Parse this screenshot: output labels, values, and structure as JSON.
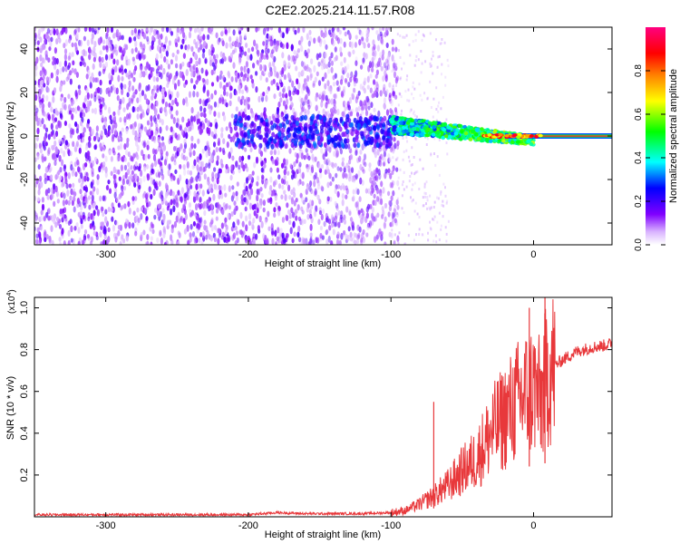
{
  "figure": {
    "title": "C2E2.2025.214.11.57.R08"
  },
  "chart_data": [
    {
      "type": "heatmap",
      "name": "spectrogram",
      "xlabel": "Height of straight line (km)",
      "ylabel": "Frequency (Hz)",
      "xlim": [
        -350,
        55
      ],
      "ylim": [
        -50,
        50
      ],
      "x_ticks": [
        "-300",
        "-200",
        "-100",
        "0"
      ],
      "y_ticks": [
        "-40",
        "-20",
        "0",
        "20",
        "40"
      ],
      "colorbar": {
        "label": "Normalized spectral amplitude",
        "range": [
          0,
          1
        ],
        "ticks": [
          "0.0",
          "0.2",
          "0.4",
          "0.6",
          "0.8"
        ],
        "colormap": [
          "#ffffff",
          "#8000ff",
          "#0000ff",
          "#00ffff",
          "#00ff00",
          "#ffff00",
          "#ff8000",
          "#ff0000",
          "#ff0080"
        ]
      },
      "regions": [
        {
          "x_range": [
            -350,
            -100
          ],
          "freq_range": [
            -50,
            50
          ],
          "amplitude": 0.12,
          "note_color": "#7a1fff"
        },
        {
          "x_range": [
            -100,
            0
          ],
          "freq_center": [
            5,
            -2
          ],
          "freq_halfwidth": 4,
          "amplitude": 0.45
        },
        {
          "x_range": [
            0,
            55
          ],
          "freq_center": 0,
          "freq_halfwidth": 1,
          "amplitude": 0.95
        }
      ]
    },
    {
      "type": "line",
      "name": "snr",
      "xlabel": "Height of straight line (km)",
      "ylabel": "SNR (10 * v/v)",
      "y_scale_label": "(x10",
      "y_scale_exp": "4",
      "y_scale_close": ")",
      "xlim": [
        -350,
        55
      ],
      "ylim": [
        0,
        1.05
      ],
      "x_ticks": [
        "-300",
        "-200",
        "-100",
        "0"
      ],
      "y_ticks": [
        "0.2",
        "0.4",
        "0.6",
        "0.8",
        "1.0"
      ],
      "color": "#e8383b",
      "series": [
        {
          "x": [
            -350,
            -300,
            -250,
            -200,
            -180,
            -160,
            -140,
            -120,
            -100,
            -90,
            -80,
            -70,
            -60,
            -50,
            -40,
            -30,
            -20,
            -10,
            0,
            5,
            10,
            20,
            30,
            40,
            50,
            55
          ],
          "y": [
            0.01,
            0.01,
            0.01,
            0.01,
            0.02,
            0.015,
            0.015,
            0.015,
            0.02,
            0.03,
            0.06,
            0.1,
            0.15,
            0.22,
            0.28,
            0.4,
            0.48,
            0.56,
            0.62,
            0.55,
            0.7,
            0.75,
            0.79,
            0.81,
            0.82,
            0.83
          ]
        }
      ],
      "spikes": [
        {
          "x": -70,
          "y": 0.55
        },
        {
          "x": -3,
          "y": 1.0
        },
        {
          "x": 8,
          "y": 1.05
        }
      ]
    }
  ]
}
